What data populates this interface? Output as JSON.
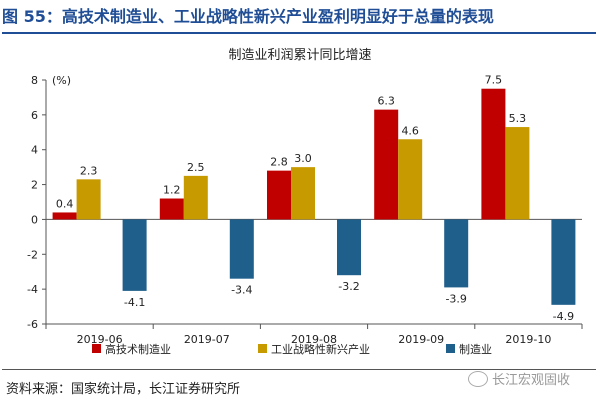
{
  "figure_title": "图 55：高技术制造业、工业战略性新兴产业盈利明显好于总量的表现",
  "source": "资料来源：国家统计局，长江证券研究所",
  "watermark": "长江宏观固收",
  "colors": {
    "title": "#1f4e96",
    "high_tech": "#c00000",
    "strategic": "#c79a00",
    "manufacturing": "#1f5f8b"
  },
  "chart_data": {
    "type": "bar",
    "title": "制造业利润累计同比增速",
    "ylabel": "(%)",
    "xlabel": "",
    "ylim": [
      -6,
      8
    ],
    "yticks": [
      8,
      6,
      4,
      2,
      0,
      -2,
      -4,
      -6
    ],
    "categories": [
      "2019-06",
      "2019-07",
      "2019-08",
      "2019-09",
      "2019-10"
    ],
    "legend_position": "bottom",
    "grid": false,
    "series": [
      {
        "name": "高技术制造业",
        "values": [
          0.4,
          1.2,
          2.8,
          6.3,
          7.5
        ]
      },
      {
        "name": "工业战略性新兴产业",
        "values": [
          2.3,
          2.5,
          3.0,
          4.6,
          5.3
        ]
      },
      {
        "name": "制造业",
        "values": [
          -4.1,
          -3.4,
          -3.2,
          -3.9,
          -4.9
        ]
      }
    ]
  }
}
